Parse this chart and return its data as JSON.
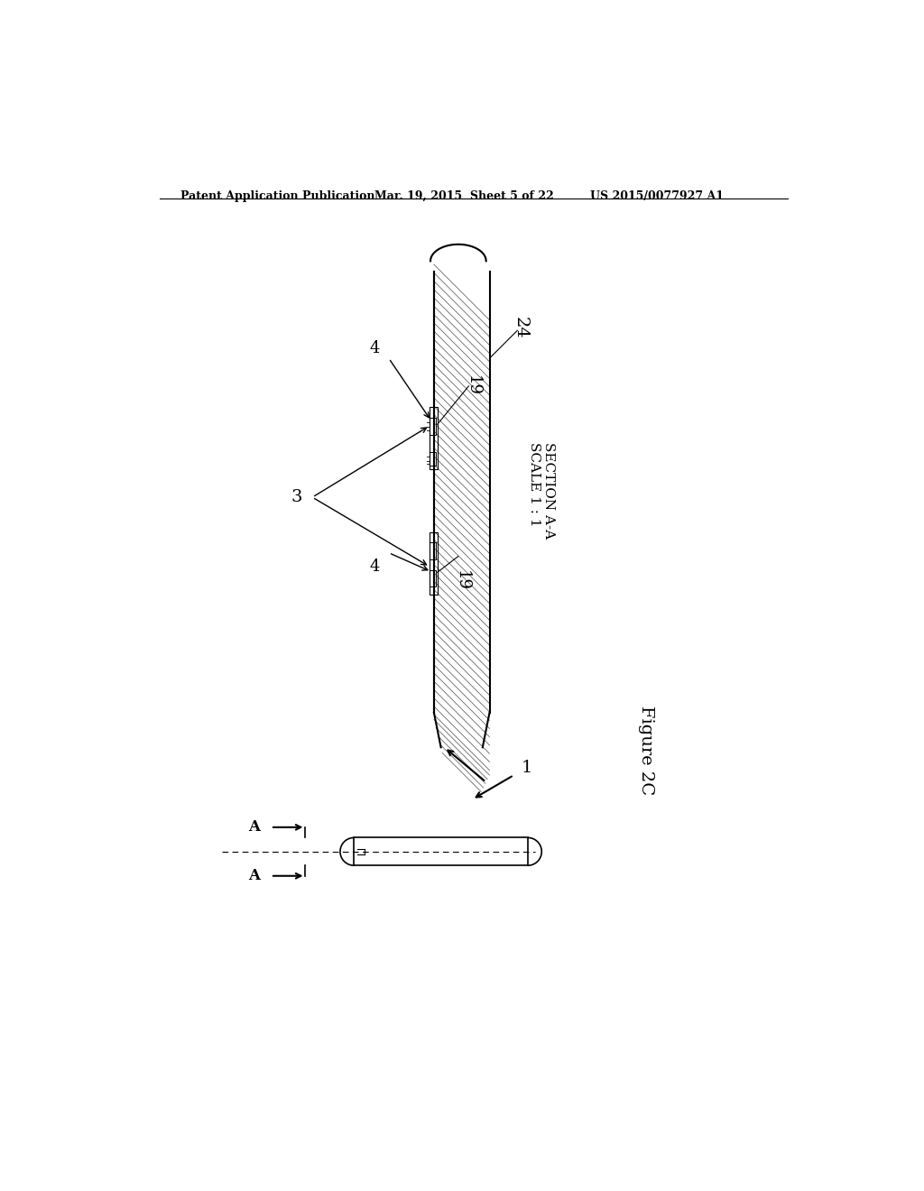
{
  "bg_color": "#ffffff",
  "header_left": "Patent Application Publication",
  "header_mid": "Mar. 19, 2015  Sheet 5 of 22",
  "header_right": "US 2015/0077927 A1",
  "figure_label": "Figure 2C",
  "section_label": "SECTION A-A\nSCALE 1 : 1",
  "label_3": "3",
  "label_4_top": "4",
  "label_4_bot": "4",
  "label_19_top": "19",
  "label_19_bot": "19",
  "label_24": "24",
  "label_1": "1",
  "label_A_top": "A",
  "label_A_bot": "A"
}
